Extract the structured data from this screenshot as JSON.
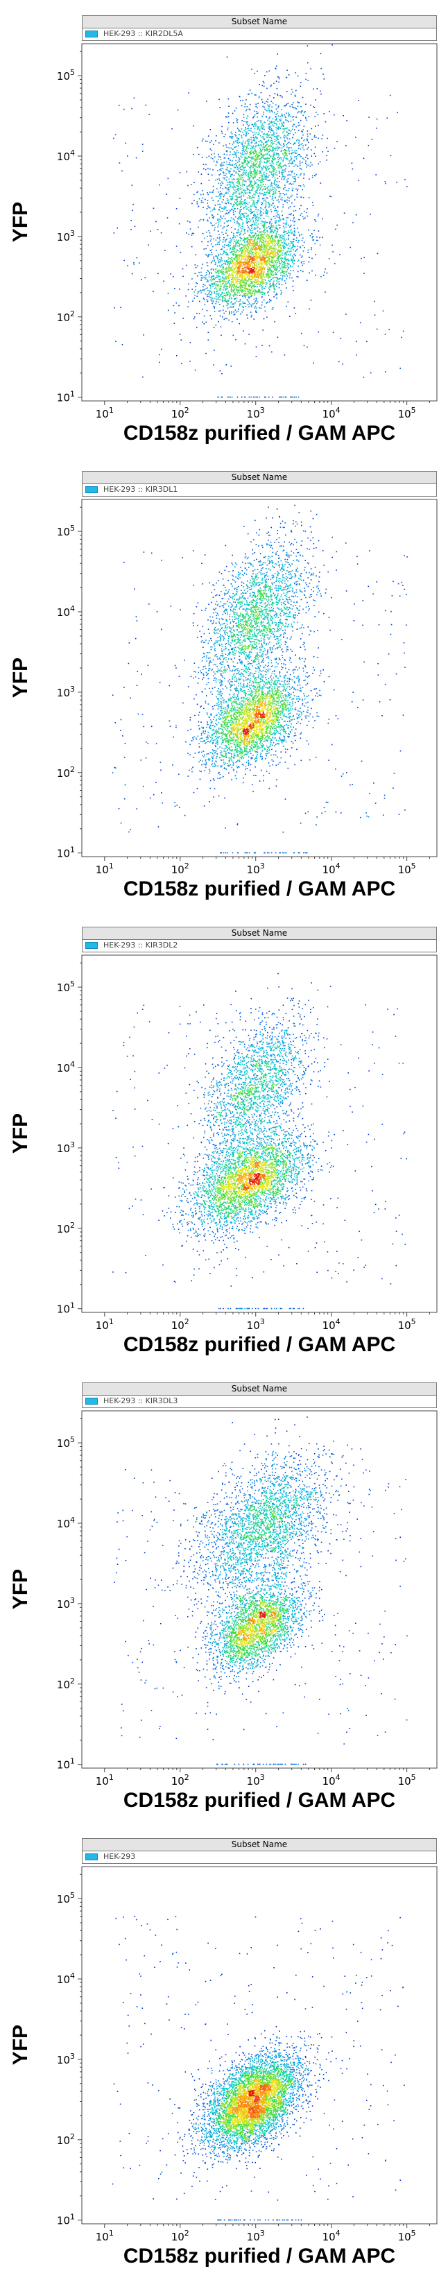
{
  "legend_header": "Subset Name",
  "chart_data": [
    {
      "type": "scatter",
      "subset": "HEK-293 :: KIR2DL5A",
      "xlabel": "CD158z purified / GAM APC",
      "ylabel": "YFP",
      "xscale": "log",
      "yscale": "log",
      "xlim": [
        5,
        250000
      ],
      "ylim": [
        9,
        250000
      ],
      "legend_color": "#22b8e8",
      "populations": [
        {
          "center_x": 900,
          "center_y": 450,
          "spread_x": 0.32,
          "spread_y": 0.28,
          "weight": 0.55
        },
        {
          "center_x": 1000,
          "center_y": 7000,
          "spread_x": 0.35,
          "spread_y": 0.5,
          "weight": 0.45
        }
      ]
    },
    {
      "type": "scatter",
      "subset": "HEK-293 :: KIR3DL1",
      "xlabel": "CD158z purified / GAM APC",
      "ylabel": "YFP",
      "xscale": "log",
      "yscale": "log",
      "xlim": [
        5,
        250000
      ],
      "ylim": [
        9,
        250000
      ],
      "legend_color": "#22b8e8",
      "populations": [
        {
          "center_x": 900,
          "center_y": 450,
          "spread_x": 0.32,
          "spread_y": 0.3,
          "weight": 0.55
        },
        {
          "center_x": 1000,
          "center_y": 8000,
          "spread_x": 0.35,
          "spread_y": 0.5,
          "weight": 0.45
        }
      ]
    },
    {
      "type": "scatter",
      "subset": "HEK-293 :: KIR3DL2",
      "xlabel": "CD158z purified / GAM APC",
      "ylabel": "YFP",
      "xscale": "log",
      "yscale": "log",
      "xlim": [
        5,
        250000
      ],
      "ylim": [
        9,
        250000
      ],
      "legend_color": "#22b8e8",
      "populations": [
        {
          "center_x": 800,
          "center_y": 400,
          "spread_x": 0.38,
          "spread_y": 0.32,
          "weight": 0.65
        },
        {
          "center_x": 1000,
          "center_y": 6000,
          "spread_x": 0.35,
          "spread_y": 0.45,
          "weight": 0.35
        }
      ]
    },
    {
      "type": "scatter",
      "subset": "HEK-293 :: KIR3DL3",
      "xlabel": "CD158z purified / GAM APC",
      "ylabel": "YFP",
      "xscale": "log",
      "yscale": "log",
      "xlim": [
        5,
        250000
      ],
      "ylim": [
        9,
        250000
      ],
      "legend_color": "#22b8e8",
      "populations": [
        {
          "center_x": 1000,
          "center_y": 500,
          "spread_x": 0.3,
          "spread_y": 0.28,
          "weight": 0.5
        },
        {
          "center_x": 1200,
          "center_y": 9000,
          "spread_x": 0.45,
          "spread_y": 0.45,
          "weight": 0.5
        }
      ]
    },
    {
      "type": "scatter",
      "subset": "HEK-293",
      "xlabel": "CD158z purified / GAM APC",
      "ylabel": "YFP",
      "xscale": "log",
      "yscale": "log",
      "xlim": [
        5,
        250000
      ],
      "ylim": [
        9,
        250000
      ],
      "legend_color": "#22b8e8",
      "populations": [
        {
          "center_x": 900,
          "center_y": 300,
          "spread_x": 0.32,
          "spread_y": 0.3,
          "weight": 1.0
        }
      ]
    }
  ],
  "ticks": {
    "x": [
      {
        "value": 10,
        "base": "10",
        "exp": "1"
      },
      {
        "value": 100,
        "base": "10",
        "exp": "2"
      },
      {
        "value": 1000,
        "base": "10",
        "exp": "3"
      },
      {
        "value": 10000,
        "base": "10",
        "exp": "4"
      },
      {
        "value": 100000,
        "base": "10",
        "exp": "5"
      }
    ],
    "y": [
      {
        "value": 10,
        "base": "10",
        "exp": "1"
      },
      {
        "value": 100,
        "base": "10",
        "exp": "2"
      },
      {
        "value": 1000,
        "base": "10",
        "exp": "3"
      },
      {
        "value": 10000,
        "base": "10",
        "exp": "4"
      },
      {
        "value": 100000,
        "base": "10",
        "exp": "5"
      }
    ]
  }
}
